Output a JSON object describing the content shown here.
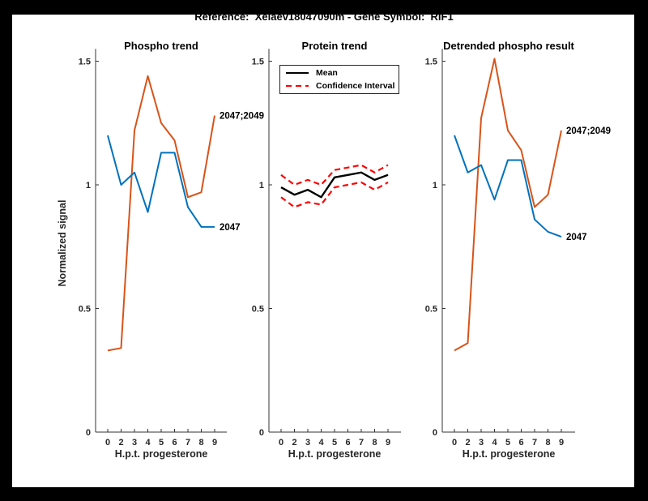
{
  "frame": {
    "border_color": "#000000",
    "canvas_color": "#ffffff"
  },
  "header": {
    "title": "Reference:  Xelaev18047090m - Gene Symbol:  RIF1"
  },
  "axis_style": {
    "spine_color": "#333333",
    "tick_label_color": "#262626"
  },
  "chart_data": [
    {
      "type": "line",
      "title": "Phospho trend",
      "xlabel": "H.p.t. progesterone",
      "ylabel": "Normalized signal",
      "categories": [
        "0",
        "2",
        "3",
        "4",
        "5",
        "6",
        "7",
        "8",
        "9"
      ],
      "yticks": [
        "0",
        "0.5",
        "1",
        "1.5"
      ],
      "ytick_values": [
        0,
        0.5,
        1,
        1.5
      ],
      "ylim": [
        0,
        1.55
      ],
      "grid": false,
      "series": [
        {
          "name": "2047;2049",
          "color": "#D95319",
          "style": "solid",
          "values": [
            0.33,
            0.34,
            1.22,
            1.44,
            1.25,
            1.18,
            0.95,
            0.97,
            1.28
          ],
          "end_label": "2047;2049"
        },
        {
          "name": "2047",
          "color": "#0072BD",
          "style": "solid",
          "values": [
            1.2,
            1.0,
            1.05,
            0.89,
            1.13,
            1.13,
            0.91,
            0.83,
            0.83
          ],
          "end_label": "2047"
        }
      ]
    },
    {
      "type": "line",
      "title": "Protein trend",
      "xlabel": "H.p.t. progesterone",
      "ylabel": "",
      "categories": [
        "0",
        "2",
        "3",
        "4",
        "5",
        "6",
        "7",
        "8",
        "9"
      ],
      "yticks": [
        "0",
        "0.5",
        "1",
        "1.5"
      ],
      "ytick_values": [
        0,
        0.5,
        1,
        1.5
      ],
      "ylim": [
        0,
        1.55
      ],
      "grid": false,
      "legend": {
        "position": "northwest",
        "entries": [
          {
            "label": "Mean",
            "color": "#000000",
            "style": "solid"
          },
          {
            "label": "Confidence Interval",
            "color": "#FF0000",
            "style": "dashed"
          }
        ]
      },
      "series": [
        {
          "name": "Confidence Interval upper",
          "color": "#FF0000",
          "style": "dashed",
          "values": [
            1.04,
            1.0,
            1.02,
            1.0,
            1.06,
            1.07,
            1.08,
            1.05,
            1.08
          ]
        },
        {
          "name": "Confidence Interval lower",
          "color": "#FF0000",
          "style": "dashed",
          "values": [
            0.95,
            0.91,
            0.93,
            0.92,
            0.99,
            1.0,
            1.01,
            0.98,
            1.01
          ]
        },
        {
          "name": "Mean",
          "color": "#000000",
          "style": "solid",
          "values": [
            0.99,
            0.96,
            0.98,
            0.95,
            1.03,
            1.04,
            1.05,
            1.02,
            1.04
          ]
        }
      ]
    },
    {
      "type": "line",
      "title": "Detrended phospho result",
      "xlabel": "H.p.t. progesterone",
      "ylabel": "",
      "categories": [
        "0",
        "2",
        "3",
        "4",
        "5",
        "6",
        "7",
        "8",
        "9"
      ],
      "yticks": [
        "0",
        "0.5",
        "1",
        "1.5"
      ],
      "ytick_values": [
        0,
        0.5,
        1,
        1.5
      ],
      "ylim": [
        0,
        1.55
      ],
      "grid": false,
      "series": [
        {
          "name": "2047;2049",
          "color": "#D95319",
          "style": "solid",
          "values": [
            0.33,
            0.36,
            1.27,
            1.51,
            1.22,
            1.14,
            0.91,
            0.96,
            1.22
          ],
          "end_label": "2047;2049"
        },
        {
          "name": "2047",
          "color": "#0072BD",
          "style": "solid",
          "values": [
            1.2,
            1.05,
            1.08,
            0.94,
            1.1,
            1.1,
            0.86,
            0.81,
            0.79
          ],
          "end_label": "2047"
        }
      ]
    }
  ]
}
